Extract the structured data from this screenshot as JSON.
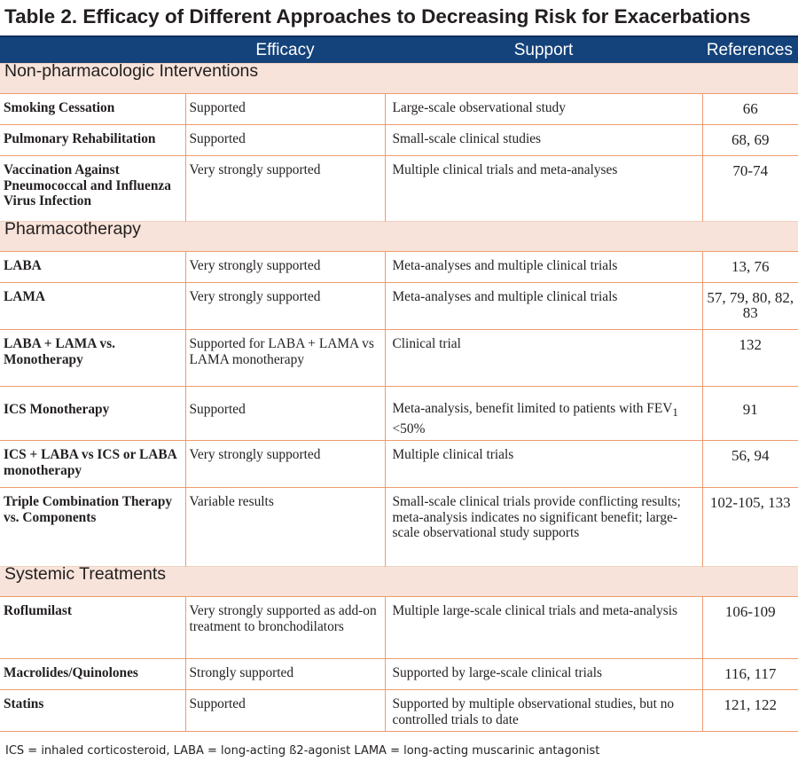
{
  "title": "Table 2. Efficacy of Different Approaches to Decreasing Risk for Exacerbations",
  "columns": [
    "",
    "Efficacy",
    "Support",
    "References"
  ],
  "sections": [
    {
      "name": "Non-pharmacologic Interventions",
      "rows": [
        {
          "label": "Smoking Cessation",
          "efficacy": "Supported",
          "support": "Large-scale observational study",
          "refs": "66"
        },
        {
          "label": "Pulmonary Rehabilitation",
          "efficacy": "Supported",
          "support": "Small-scale clinical studies",
          "refs": "68, 69"
        },
        {
          "label": "Vaccination Against Pneumococcal and Influenza Virus Infection",
          "efficacy": "Very strongly supported",
          "support": "Multiple clinical trials and meta-analyses",
          "refs": "70-74"
        }
      ]
    },
    {
      "name": "Pharmacotherapy",
      "rows": [
        {
          "label": "LABA",
          "efficacy": "Very strongly supported",
          "support": "Meta-analyses and multiple clinical trials",
          "refs": "13, 76"
        },
        {
          "label": "LAMA",
          "efficacy": "Very strongly supported",
          "support": "Meta-analyses and multiple clinical trials",
          "refs": "57, 79, 80, 82, 83"
        },
        {
          "label": "LABA + LAMA vs. Monotherapy",
          "efficacy": "Supported for LABA + LAMA vs LAMA monotherapy",
          "support": "Clinical trial",
          "refs": "132"
        },
        {
          "label": "ICS Monotherapy",
          "efficacy": "Supported",
          "support_pre": "Meta-analysis, benefit limited to patients with FEV",
          "support_sub": "1",
          "support_post": " <50%",
          "refs": "91"
        },
        {
          "label": "ICS + LABA vs ICS or LABA monotherapy",
          "efficacy": "Very strongly supported",
          "support": "Multiple clinical trials",
          "refs": "56, 94"
        },
        {
          "label": "Triple Combination Therapy vs. Components",
          "efficacy": "Variable results",
          "support": "Small-scale clinical trials provide conflicting results; meta-analysis indicates no significant benefit; large-scale observational study supports",
          "refs": "102-105, 133"
        }
      ]
    },
    {
      "name": "Systemic Treatments",
      "rows": [
        {
          "label": "Roflumilast",
          "efficacy": "Very strongly supported as add-on treatment to bronchodilators",
          "support": "Multiple large-scale clinical trials and meta-analysis",
          "refs": "106-109"
        },
        {
          "label": "Macrolides/Quinolones",
          "efficacy": "Strongly supported",
          "support": "Supported by large-scale clinical trials",
          "refs": "116, 117"
        },
        {
          "label": "Statins",
          "efficacy": "Supported",
          "support": "Supported by multiple observational studies, but no controlled trials to date",
          "refs": "121, 122"
        }
      ]
    }
  ],
  "footnote": "ICS = inhaled corticosteroid, LABA = long-acting ß2-agonist LAMA = long-acting muscarinic antagonist"
}
